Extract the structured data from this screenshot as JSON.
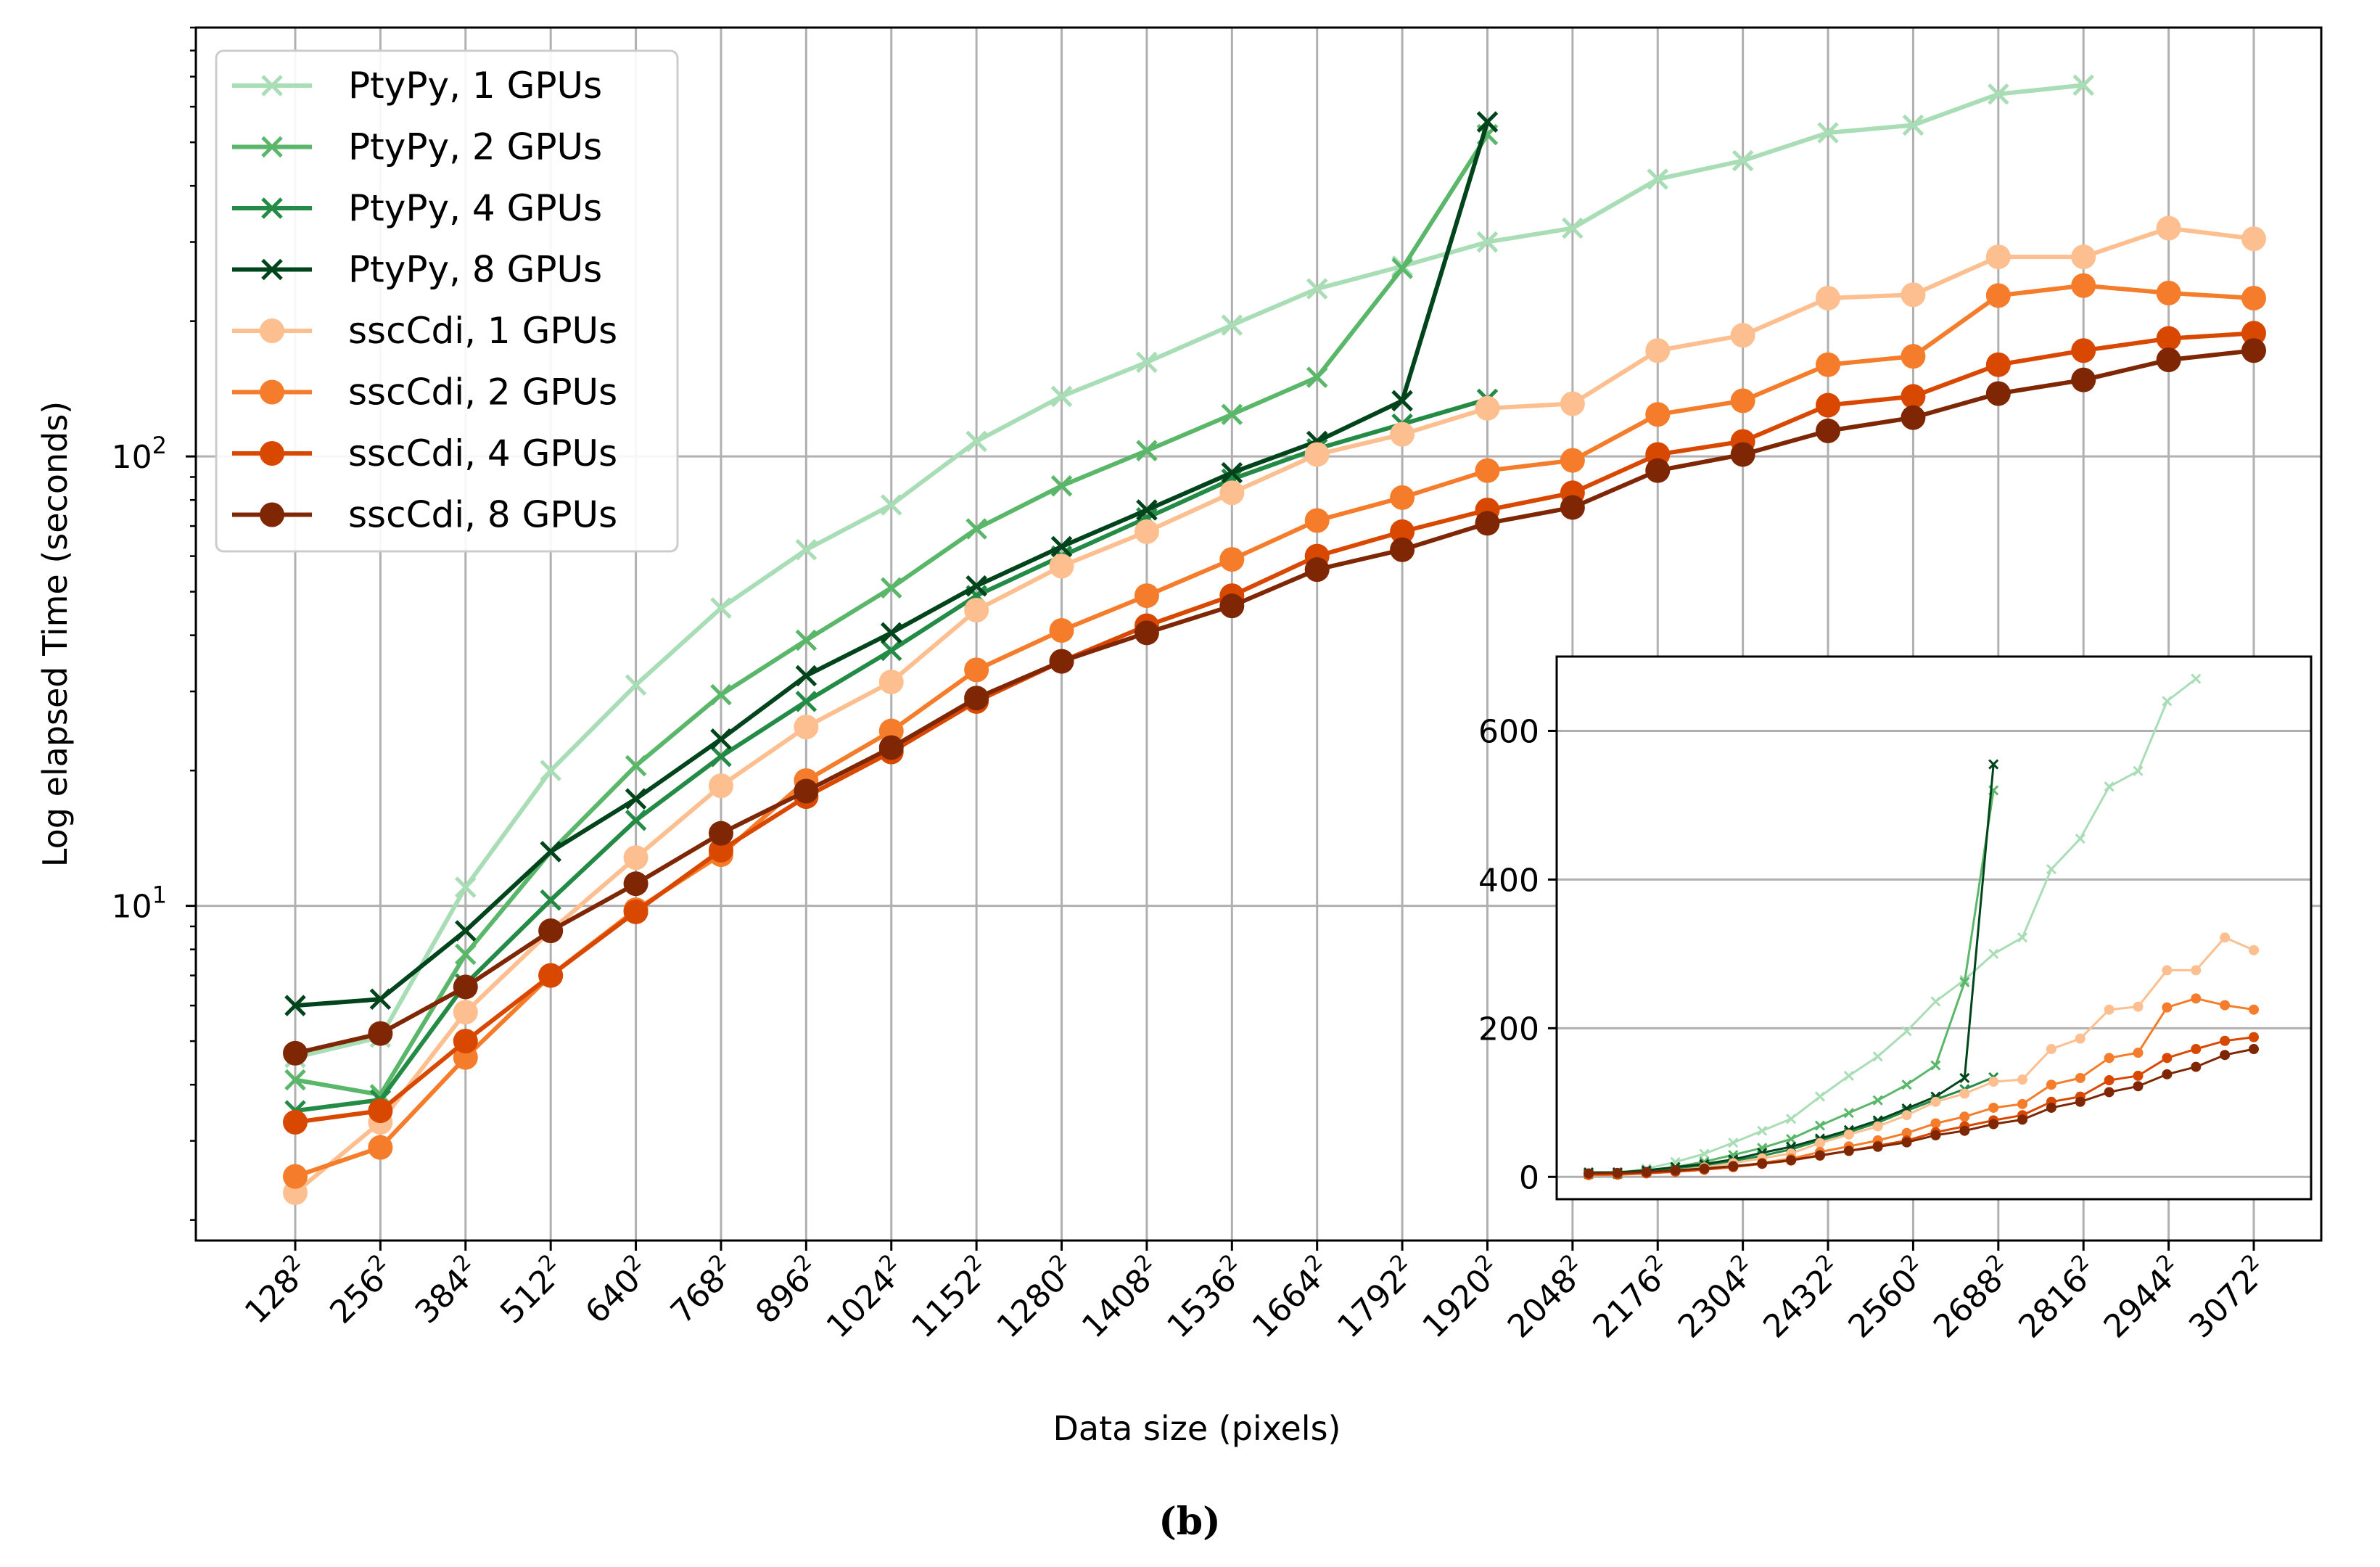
{
  "chart_data": [
    {
      "type": "line",
      "yscale": "log",
      "ylim": [
        1.8,
        900
      ],
      "xlabel": "Data size (pixels)",
      "ylabel": "Log elapsed Time (seconds)",
      "ytick_labels": [
        {
          "base": "10",
          "exp": "1",
          "value": 10
        },
        {
          "base": "10",
          "exp": "2",
          "value": 100
        }
      ],
      "grid": true,
      "legend_location": "top-left",
      "categories": [
        "128",
        "256",
        "384",
        "512",
        "640",
        "768",
        "896",
        "1024",
        "1152",
        "1280",
        "1408",
        "1536",
        "1664",
        "1792",
        "1920",
        "2048",
        "2176",
        "2304",
        "2432",
        "2560",
        "2688",
        "2816",
        "2944",
        "3072"
      ],
      "category_exp": "2",
      "series": [
        {
          "name": "PtyPy, 1 GPUs",
          "color": "#a8ddb5",
          "marker": "x",
          "values": [
            4.6,
            5.1,
            11,
            20,
            31,
            46,
            62,
            78,
            108,
            136,
            162,
            196,
            236,
            265,
            300,
            322,
            414,
            455,
            525,
            546,
            640,
            670,
            null,
            null
          ]
        },
        {
          "name": "PtyPy, 2 GPUs",
          "color": "#5ab769",
          "marker": "x",
          "values": [
            4.1,
            3.8,
            7.8,
            13.2,
            20.5,
            29.5,
            39,
            51,
            69,
            86,
            103,
            124,
            150,
            262,
            520,
            null,
            null,
            null,
            null,
            null,
            null,
            null,
            null,
            null
          ]
        },
        {
          "name": "PtyPy, 4 GPUs",
          "color": "#238b45",
          "marker": "x",
          "values": [
            3.5,
            3.7,
            6.7,
            10.3,
            15.5,
            21.5,
            28.5,
            37,
            49,
            60,
            73,
            89,
            104,
            118,
            134,
            null,
            null,
            null,
            null,
            null,
            null,
            null,
            null,
            null
          ]
        },
        {
          "name": "PtyPy, 8 GPUs",
          "color": "#00441b",
          "marker": "x",
          "values": [
            6.0,
            6.2,
            8.8,
            13.2,
            17.3,
            23.5,
            32.5,
            40.5,
            51.5,
            63,
            76,
            92,
            108,
            133,
            555,
            null,
            null,
            null,
            null,
            null,
            null,
            null,
            null,
            null
          ]
        },
        {
          "name": "sscCdi, 1 GPUs",
          "color": "#fdbf8f",
          "marker": "o",
          "values": [
            2.3,
            3.3,
            5.8,
            8.8,
            12.8,
            18.5,
            25,
            31.5,
            45.5,
            57,
            68,
            83,
            101,
            112,
            128,
            131,
            172,
            186,
            225,
            229,
            278,
            278,
            322,
            305
          ]
        },
        {
          "name": "sscCdi, 2 GPUs",
          "color": "#f57c2a",
          "marker": "o",
          "values": [
            2.5,
            2.9,
            4.6,
            7.0,
            9.8,
            13.0,
            19.0,
            24.5,
            33.5,
            41,
            49,
            59,
            72,
            81,
            93,
            98,
            124,
            133,
            160,
            167,
            228,
            240,
            231,
            225
          ]
        },
        {
          "name": "sscCdi, 4 GPUs",
          "color": "#d94801",
          "marker": "o",
          "values": [
            3.3,
            3.5,
            5.0,
            7.0,
            9.7,
            13.3,
            17.5,
            22,
            28.5,
            35,
            42,
            49,
            60,
            68,
            76,
            83,
            101,
            108,
            130,
            136,
            160,
            172,
            183,
            188
          ]
        },
        {
          "name": "sscCdi, 8 GPUs",
          "color": "#7f2704",
          "marker": "o",
          "values": [
            4.7,
            5.2,
            6.6,
            8.8,
            11.2,
            14.5,
            18.0,
            22.5,
            29,
            35,
            40.5,
            46.5,
            56,
            62,
            71,
            77,
            93,
            101,
            114,
            122,
            138,
            148,
            164,
            172
          ]
        }
      ]
    },
    {
      "type": "line",
      "role": "inset",
      "yscale": "linear",
      "ylim": [
        -30,
        700
      ],
      "yticks": [
        0,
        200,
        400,
        600
      ],
      "x_index_range": [
        0,
        23
      ],
      "grid": true,
      "series_ref": "same as main chart (linear scale)"
    }
  ],
  "caption": {
    "label": "(b)"
  }
}
